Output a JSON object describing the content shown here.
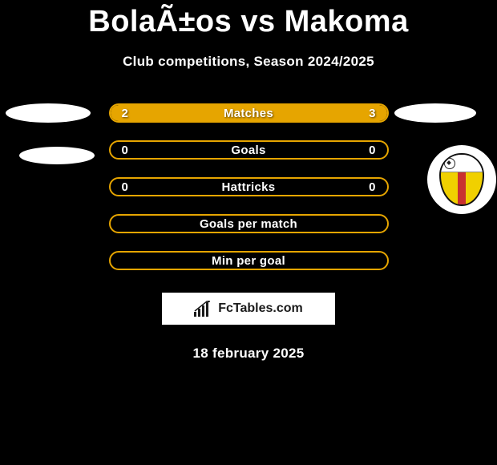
{
  "header": {
    "title": "BolaÃ±os vs Makoma",
    "subtitle": "Club competitions, Season 2024/2025"
  },
  "stats": {
    "rows": [
      {
        "label": "Matches",
        "left_value": "2",
        "right_value": "3",
        "left_pct": 40,
        "right_pct": 60,
        "show_values": true
      },
      {
        "label": "Goals",
        "left_value": "0",
        "right_value": "0",
        "left_pct": 0,
        "right_pct": 0,
        "show_values": true
      },
      {
        "label": "Hattricks",
        "left_value": "0",
        "right_value": "0",
        "left_pct": 0,
        "right_pct": 0,
        "show_values": true
      },
      {
        "label": "Goals per match",
        "left_value": "",
        "right_value": "",
        "left_pct": 0,
        "right_pct": 0,
        "show_values": false
      },
      {
        "label": "Min per goal",
        "left_value": "",
        "right_value": "",
        "left_pct": 0,
        "right_pct": 0,
        "show_values": false
      }
    ]
  },
  "attribution": {
    "text": "FcTables.com"
  },
  "date": "18 february 2025",
  "colors": {
    "bg": "#000000",
    "accent": "#e6a500",
    "text": "#ffffff",
    "attr_bg": "#ffffff",
    "badge_yellow": "#f0d000",
    "badge_red": "#c93030"
  }
}
